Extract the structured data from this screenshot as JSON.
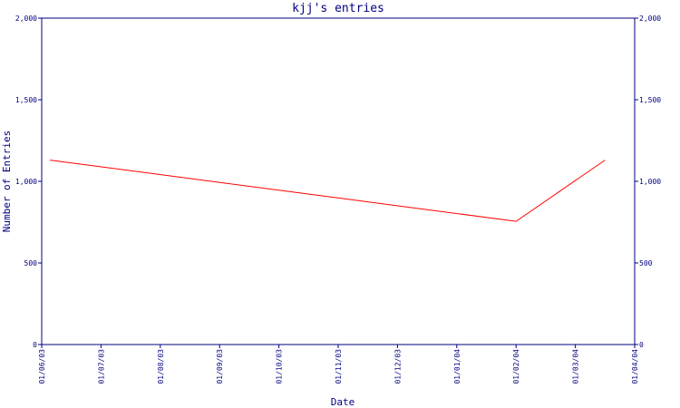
{
  "chart_data": {
    "type": "line",
    "title": "kjj's entries",
    "xlabel": "Date",
    "ylabel": "Number of Entries",
    "xlim": [
      0,
      10
    ],
    "xticks": [
      {
        "value": 0,
        "label": "01/06/03"
      },
      {
        "value": 1,
        "label": "01/07/03"
      },
      {
        "value": 2,
        "label": "01/08/03"
      },
      {
        "value": 3,
        "label": "01/09/03"
      },
      {
        "value": 4,
        "label": "01/10/03"
      },
      {
        "value": 5,
        "label": "01/11/03"
      },
      {
        "value": 6,
        "label": "01/12/03"
      },
      {
        "value": 7,
        "label": "01/01/04"
      },
      {
        "value": 8,
        "label": "01/02/04"
      },
      {
        "value": 9,
        "label": "01/03/04"
      },
      {
        "value": 10,
        "label": "01/04/04"
      }
    ],
    "ylim": [
      0,
      2000
    ],
    "yticks": [
      0,
      500,
      {
        "value": 1000,
        "label": "1,000"
      },
      {
        "value": 1500,
        "label": "1,500"
      },
      {
        "value": 2000,
        "label": "2,000"
      }
    ],
    "axis_color": "#000080",
    "series": [
      {
        "color": "#ff0000",
        "x": [
          0.14,
          8,
          9.5
        ],
        "values": [
          1130,
          755,
          1130
        ]
      }
    ]
  }
}
